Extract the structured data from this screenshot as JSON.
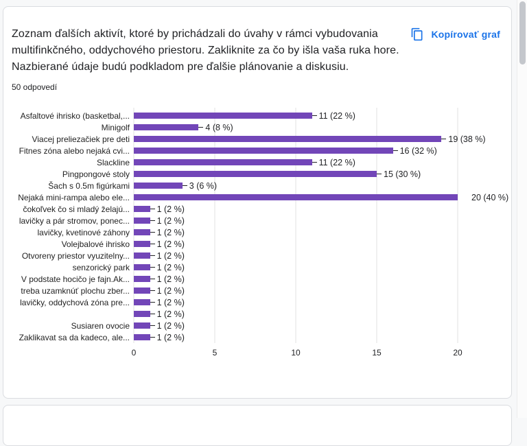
{
  "colors": {
    "accent_blue": "#1a73e8",
    "bar_purple": "#7246b8",
    "card_border": "#dadce0",
    "gridline": "#e0e0e0",
    "text": "#202124"
  },
  "card": {
    "title": "Zoznam ďalších aktivít, ktoré by prichádzali do úvahy v rámci vybudovania multifinkčného, oddychového priestoru. Zakliknite za čo by išla vaša ruka hore. Nazbierané údaje budú podkladom pre ďalšie plánovanie a diskusiu.",
    "responses_count": "50 odpovedí",
    "copy_chart_label": "Kopírovať graf"
  },
  "chart_data": {
    "type": "bar",
    "orientation": "horizontal",
    "title": "",
    "xlabel": "",
    "ylabel": "",
    "xlim": [
      0,
      20
    ],
    "x_ticks": [
      0,
      5,
      10,
      15,
      20
    ],
    "grid": true,
    "legend": false,
    "bar_color": "#7246b8",
    "categories": [
      "Asfaltové ihrisko (basketbal,...",
      "Minigolf",
      "Viacej preliezačiek pre deti",
      "Fitnes zóna alebo nejaká cvi...",
      "Slackline",
      "Pingpongové stoly",
      "Šach s 0.5m figúrkami",
      "Nejaká mini-rampa alebo ele...",
      "čokoľvek čo si mladý želajú...",
      "lavičky a pár stromov, ponec...",
      "lavičky, kvetinové záhony",
      "Volejbalové ihrisko",
      "Otvoreny priestor vyuzitelny...",
      "senzorický park",
      "V podstate hocičo je fajn.Ak...",
      "treba uzamknúť plochu zber...",
      "lavičky, oddychová zóna pre...",
      "",
      "Susiaren ovocie",
      "Zaklikavat sa da kadeco, ale..."
    ],
    "values": [
      11,
      4,
      19,
      16,
      11,
      15,
      3,
      20,
      1,
      1,
      1,
      1,
      1,
      1,
      1,
      1,
      1,
      1,
      1,
      1
    ],
    "value_labels": [
      "11 (22 %)",
      "4 (8 %)",
      "19 (38 %)",
      "16 (32 %)",
      "11 (22 %)",
      "15 (30 %)",
      "3 (6 %)",
      "20 (40 %)",
      "1 (2 %)",
      "1 (2 %)",
      "1 (2 %)",
      "1 (2 %)",
      "1 (2 %)",
      "1 (2 %)",
      "1 (2 %)",
      "1 (2 %)",
      "1 (2 %)",
      "1 (2 %)",
      "1 (2 %)",
      "1 (2 %)"
    ]
  }
}
